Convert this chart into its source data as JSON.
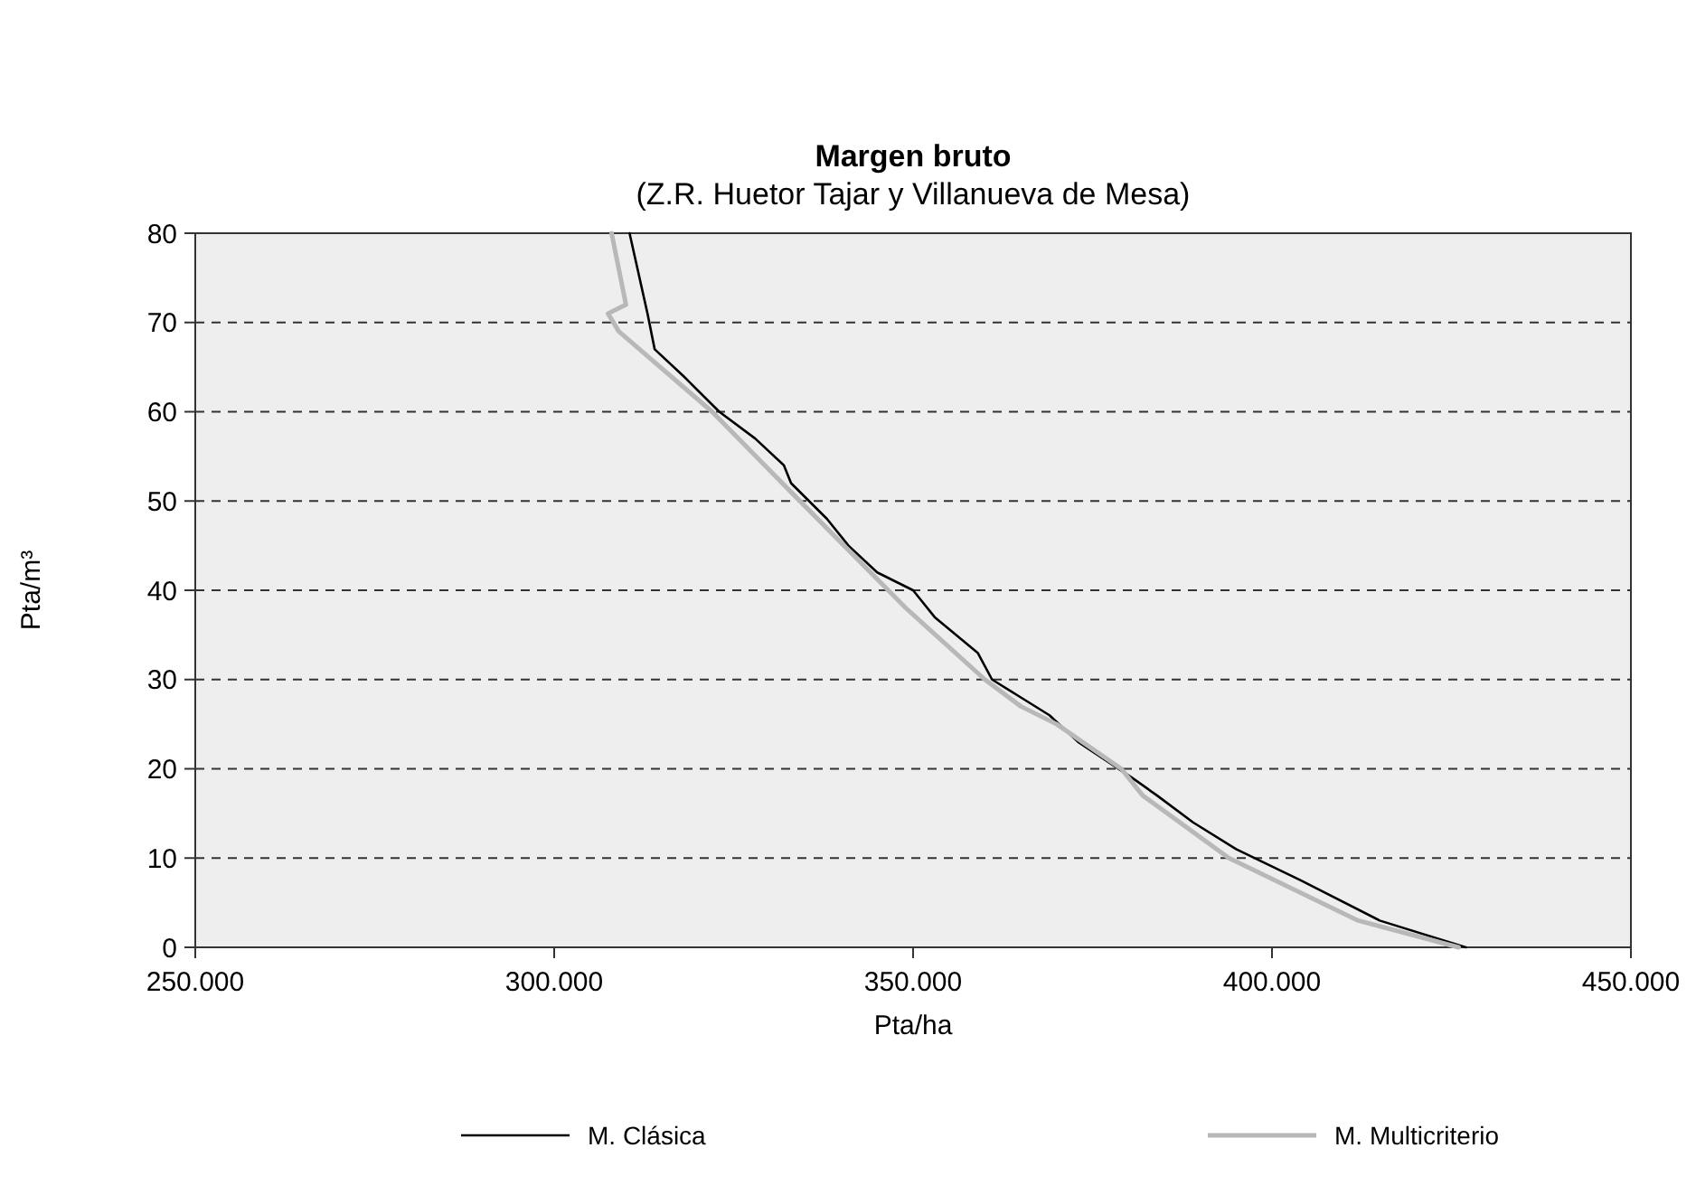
{
  "chart_data": {
    "type": "line",
    "title": "Margen bruto",
    "subtitle": "(Z.R. Huetor Tajar y Villanueva de Mesa)",
    "xlabel": "Pta/ha",
    "ylabel": "Pta/m³",
    "xlim": [
      250000,
      450000
    ],
    "xticks": [
      {
        "value": 250000,
        "label": "250.000"
      },
      {
        "value": 300000,
        "label": "300.000"
      },
      {
        "value": 350000,
        "label": "350.000"
      },
      {
        "value": 400000,
        "label": "400.000"
      },
      {
        "value": 450000,
        "label": "450.000"
      }
    ],
    "ylim": [
      0,
      80
    ],
    "yticks": [
      0,
      10,
      20,
      30,
      40,
      50,
      60,
      70,
      80
    ],
    "grid": "y",
    "legend": "bottom",
    "marker": "none",
    "line_style": "solid",
    "series": [
      {
        "name": "M. Clásica",
        "color": "#000000",
        "x": [
          310500,
          313000,
          314000,
          318000,
          323000,
          328000,
          332000,
          333000,
          338000,
          341000,
          345000,
          350000,
          353000,
          359000,
          361000,
          365000,
          369000,
          373000,
          380500,
          384000,
          389000,
          395000,
          404000,
          415000,
          427000
        ],
        "values": [
          80,
          71,
          67,
          64,
          60,
          57,
          54,
          52,
          48,
          45,
          42,
          40,
          37,
          33,
          30,
          28,
          26,
          23,
          19,
          17,
          14,
          11,
          7.5,
          3,
          0
        ]
      },
      {
        "name": "M. Multicriterio",
        "color": "#b8b8b8",
        "x": [
          308000,
          310000,
          307500,
          309000,
          322000,
          333000,
          349000,
          360000,
          365000,
          370000,
          379000,
          382000,
          394000,
          412000,
          426000
        ],
        "values": [
          80,
          72,
          71,
          69,
          60,
          51,
          38,
          30,
          27,
          25,
          20,
          17,
          10,
          3,
          0
        ]
      }
    ]
  }
}
